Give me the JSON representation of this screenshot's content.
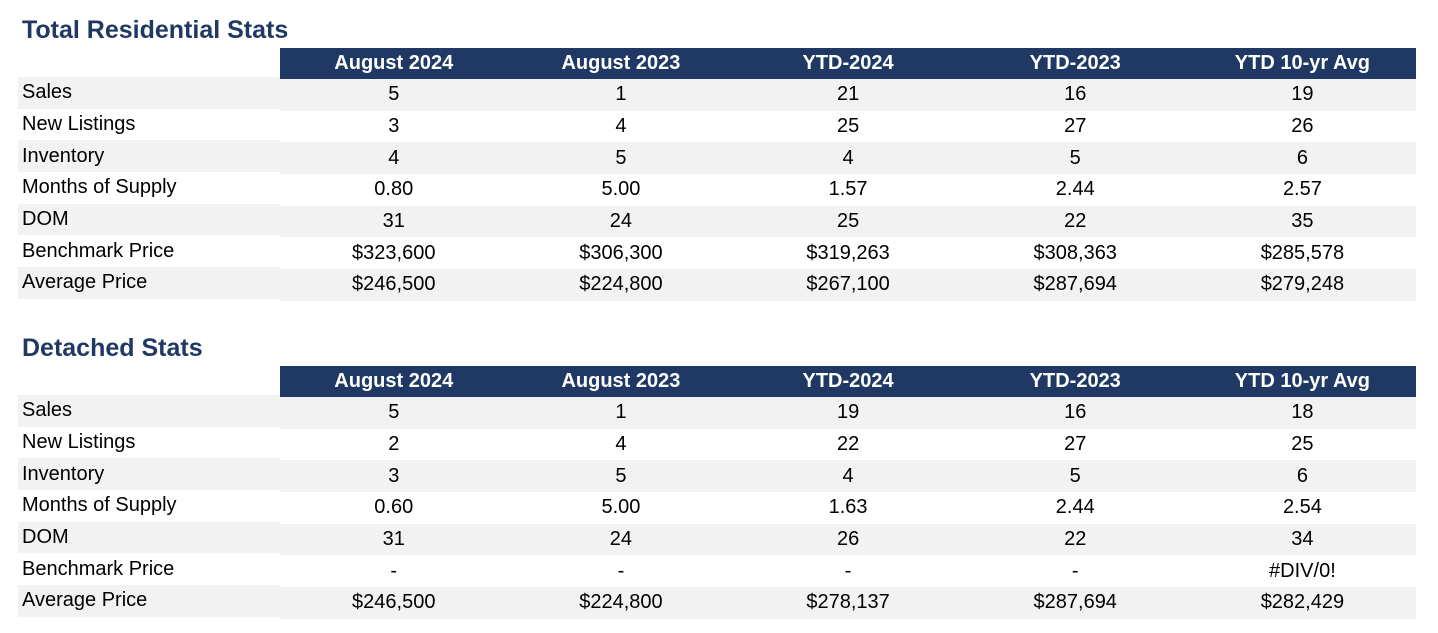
{
  "columns": [
    "August 2024",
    "August 2023",
    "YTD-2024",
    "YTD-2023",
    "YTD 10-yr Avg"
  ],
  "residential": {
    "title": "Total Residential Stats",
    "rows": [
      {
        "label": "Sales",
        "values": [
          "5",
          "1",
          "21",
          "16",
          "19"
        ]
      },
      {
        "label": "New Listings",
        "values": [
          "3",
          "4",
          "25",
          "27",
          "26"
        ]
      },
      {
        "label": "Inventory",
        "values": [
          "4",
          "5",
          "4",
          "5",
          "6"
        ]
      },
      {
        "label": "Months of Supply",
        "values": [
          "0.80",
          "5.00",
          "1.57",
          "2.44",
          "2.57"
        ]
      },
      {
        "label": "DOM",
        "values": [
          "31",
          "24",
          "25",
          "22",
          "35"
        ]
      },
      {
        "label": "Benchmark Price",
        "values": [
          "$323,600",
          "$306,300",
          "$319,263",
          "$308,363",
          "$285,578"
        ]
      },
      {
        "label": "Average Price",
        "values": [
          "$246,500",
          "$224,800",
          "$267,100",
          "$287,694",
          "$279,248"
        ]
      }
    ]
  },
  "detached": {
    "title": "Detached Stats",
    "rows": [
      {
        "label": "Sales",
        "values": [
          "5",
          "1",
          "19",
          "16",
          "18"
        ]
      },
      {
        "label": "New Listings",
        "values": [
          "2",
          "4",
          "22",
          "27",
          "25"
        ]
      },
      {
        "label": "Inventory",
        "values": [
          "3",
          "5",
          "4",
          "5",
          "6"
        ]
      },
      {
        "label": "Months of Supply",
        "values": [
          "0.60",
          "5.00",
          "1.63",
          "2.44",
          "2.54"
        ]
      },
      {
        "label": "DOM",
        "values": [
          "31",
          "24",
          "26",
          "22",
          "34"
        ]
      },
      {
        "label": "Benchmark Price",
        "values": [
          "-",
          "-",
          "-",
          "-",
          "#DIV/0!"
        ]
      },
      {
        "label": "Average Price",
        "values": [
          "$246,500",
          "$224,800",
          "$278,137",
          "$287,694",
          "$282,429"
        ]
      }
    ]
  },
  "colors": {
    "title": "#1f3864",
    "header_bg": "#1f3864",
    "header_text": "#ffffff",
    "row_shade": "#f2f2f2"
  }
}
